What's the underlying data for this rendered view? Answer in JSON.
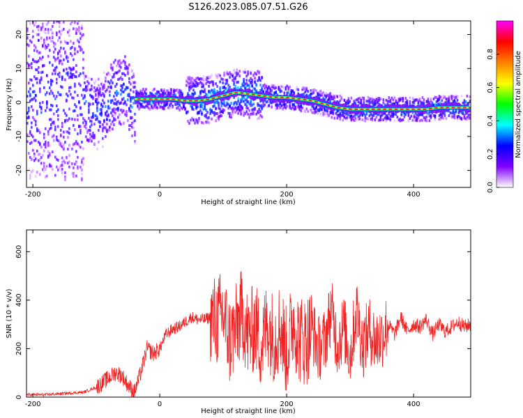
{
  "title": "S126.2023.085.07.51.G26",
  "colors": {
    "snr_line": "#ee2222",
    "ridge": "#ff2020",
    "frame": "#000000"
  },
  "chart_data": [
    {
      "type": "heatmap",
      "xlabel": "Height of straight line (km)",
      "ylabel": "Frequency (Hz)",
      "xlim": [
        -210,
        490
      ],
      "ylim": [
        -25,
        24
      ],
      "x_ticks": [
        -200,
        0,
        200,
        400
      ],
      "y_ticks": [
        -20,
        -10,
        0,
        10,
        20
      ],
      "grid": false,
      "colorbar": {
        "label": "Normalized spectral amplitude",
        "range": [
          0.0,
          1.0
        ],
        "ticks": [
          0.0,
          0.2,
          0.4,
          0.6,
          0.8
        ],
        "colormap": [
          "#ffffff",
          "#8000ff",
          "#0000ff",
          "#00ffff",
          "#00ff00",
          "#ffff00",
          "#ff8000",
          "#ff0000",
          "#ff00ff"
        ]
      },
      "ridge": {
        "x": [
          -40,
          -20,
          0,
          20,
          40,
          60,
          80,
          100,
          120,
          140,
          160,
          180,
          200,
          220,
          240,
          260,
          280,
          300,
          320,
          340,
          360,
          380,
          400,
          420,
          440,
          460,
          490
        ],
        "y": [
          1,
          1,
          1,
          1,
          0.5,
          0.5,
          1,
          2,
          3,
          2.5,
          2,
          1.5,
          1.5,
          1,
          0.5,
          -0.5,
          -1.5,
          -2,
          -2,
          -2,
          -2,
          -2,
          -2,
          -2,
          -1.5,
          -1.5,
          -1.5
        ]
      }
    },
    {
      "type": "line",
      "xlabel": "Height of straight line (km)",
      "ylabel": "SNR (10 * v/v)",
      "xlim": [
        -210,
        490
      ],
      "ylim": [
        0,
        690
      ],
      "x_ticks": [
        -200,
        0,
        200,
        400
      ],
      "y_ticks": [
        0,
        200,
        400,
        600
      ],
      "grid": false,
      "series": [
        {
          "x": [
            -210,
            -180,
            -150,
            -120,
            -100,
            -90,
            -80,
            -70,
            -60,
            -50,
            -40,
            -30,
            -20,
            -10,
            0,
            10,
            20,
            30,
            40,
            50,
            60,
            70,
            80,
            90,
            100,
            110,
            120,
            130,
            140,
            150,
            160,
            170,
            180,
            190,
            200,
            210,
            220,
            230,
            240,
            250,
            260,
            270,
            280,
            290,
            300,
            310,
            320,
            330,
            340,
            350,
            360,
            370,
            380,
            390,
            400,
            410,
            420,
            430,
            440,
            450,
            460,
            470,
            480,
            490
          ],
          "y": [
            10,
            10,
            15,
            20,
            40,
            60,
            80,
            100,
            90,
            50,
            20,
            100,
            200,
            180,
            200,
            260,
            280,
            290,
            310,
            330,
            320,
            320,
            330,
            310,
            350,
            230,
            280,
            350,
            240,
            300,
            210,
            310,
            240,
            300,
            180,
            320,
            240,
            230,
            280,
            200,
            230,
            360,
            220,
            290,
            170,
            360,
            210,
            280,
            230,
            250,
            300,
            260,
            330,
            270,
            300,
            290,
            320,
            260,
            300,
            270,
            290,
            310,
            290,
            300
          ]
        }
      ]
    }
  ]
}
